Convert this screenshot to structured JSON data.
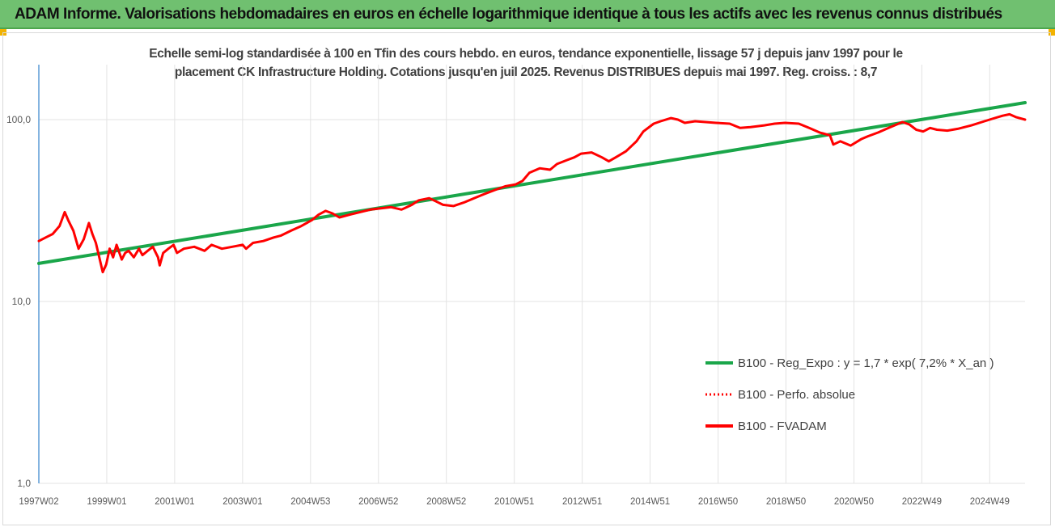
{
  "header": {
    "title": "ADAM Informe. Valorisations hebdomadaires en euros en échelle logarithmique identique à tous les actifs avec les revenus connus distribués"
  },
  "colors": {
    "header_bg": "#70c070",
    "regression": "#1aa64a",
    "series": "#ff0000",
    "corner_accent": "#f2b200"
  },
  "chart_data": {
    "type": "line",
    "subtitle_line1": "Echelle semi-log standardisée à 100 en Tfin des cours hebdo. en euros, tendance exponentielle, lissage 57 j depuis janv 1997 pour le",
    "subtitle_line2": "placement CK Infrastructure Holding. Cotations jusqu'en juil 2025. Revenus DISTRIBUES depuis mai 1997. Reg. croiss. : 8,7",
    "y_scale": "log",
    "ylim": [
      1,
      200
    ],
    "y_ticks": [
      {
        "value": 1,
        "label": "1,0"
      },
      {
        "value": 10,
        "label": "10,0"
      },
      {
        "value": 100,
        "label": "100,0"
      }
    ],
    "x_ticks": [
      "1997W02",
      "1999W01",
      "2001W01",
      "2003W01",
      "2004W53",
      "2006W52",
      "2008W52",
      "2010W51",
      "2012W51",
      "2014W51",
      "2016W50",
      "2018W50",
      "2020W50",
      "2022W49",
      "2024W49"
    ],
    "x_range": [
      1997.0,
      2025.55
    ],
    "grid": "vertical",
    "legend_position": "bottom-right",
    "legend": [
      {
        "label": "B100 - Reg_Expo : y = 1,7 * exp( 7,2% *  X_an )",
        "style": "solid",
        "color": "#1aa64a"
      },
      {
        "label": "B100 - Perfo. absolue",
        "style": "dotted",
        "color": "#ff0000"
      },
      {
        "label": "B100 - FVADAM",
        "style": "solid",
        "color": "#ff0000"
      }
    ],
    "series": [
      {
        "legend_index": 0,
        "color": "#1aa64a",
        "x": [
          1997.0,
          2025.55
        ],
        "y": [
          16.2,
          124
        ]
      },
      {
        "legend_index": 2,
        "color": "#ff0000",
        "x": [
          1997.0,
          1997.2,
          1997.4,
          1997.6,
          1997.75,
          1997.85,
          1998.0,
          1998.15,
          1998.3,
          1998.45,
          1998.55,
          1998.65,
          1998.75,
          1998.85,
          1998.95,
          1999.05,
          1999.15,
          1999.25,
          1999.4,
          1999.5,
          1999.6,
          1999.75,
          1999.9,
          2000.0,
          2000.15,
          2000.3,
          2000.45,
          2000.5,
          2000.6,
          2000.75,
          2000.9,
          2001.0,
          2001.2,
          2001.5,
          2001.8,
          2002.0,
          2002.3,
          2002.6,
          2002.9,
          2003.0,
          2003.2,
          2003.5,
          2003.8,
          2004.0,
          2004.3,
          2004.6,
          2004.9,
          2005.1,
          2005.3,
          2005.5,
          2005.7,
          2006.0,
          2006.3,
          2006.6,
          2006.9,
          2007.2,
          2007.5,
          2007.8,
          2008.0,
          2008.3,
          2008.5,
          2008.7,
          2009.0,
          2009.3,
          2009.6,
          2009.9,
          2010.2,
          2010.5,
          2010.8,
          2011.0,
          2011.2,
          2011.5,
          2011.8,
          2012.0,
          2012.3,
          2012.5,
          2012.7,
          2013.0,
          2013.3,
          2013.5,
          2013.7,
          2014.0,
          2014.3,
          2014.5,
          2014.8,
          2015.0,
          2015.3,
          2015.5,
          2015.7,
          2016.0,
          2016.3,
          2016.6,
          2017.0,
          2017.3,
          2017.6,
          2018.0,
          2018.3,
          2018.6,
          2019.0,
          2019.3,
          2019.6,
          2019.9,
          2020.0,
          2020.2,
          2020.5,
          2020.8,
          2021.0,
          2021.3,
          2021.6,
          2022.0,
          2022.2,
          2022.4,
          2022.6,
          2022.8,
          2023.0,
          2023.3,
          2023.6,
          2024.0,
          2024.3,
          2024.6,
          2024.9,
          2025.1,
          2025.3,
          2025.55
        ],
        "y": [
          21.5,
          22.5,
          23.5,
          26,
          31,
          28,
          24.5,
          19.5,
          22,
          27,
          23.5,
          21,
          17.5,
          14.5,
          16,
          19.5,
          17.5,
          20.5,
          17,
          18.5,
          19,
          17.5,
          19.5,
          18,
          19,
          20,
          17.5,
          15.8,
          18.5,
          19.5,
          20.5,
          18.5,
          19.5,
          20,
          19,
          20.5,
          19.5,
          20,
          20.5,
          19.5,
          21,
          21.5,
          22.5,
          23,
          24.5,
          26,
          28,
          30,
          31.5,
          30.5,
          29,
          30,
          31,
          32,
          32.5,
          33,
          32,
          34,
          36,
          37,
          35.5,
          34,
          33.5,
          35,
          37,
          39,
          41,
          43,
          44,
          46,
          51,
          54,
          53,
          57,
          60,
          62,
          65,
          66,
          62,
          59,
          62,
          67,
          76,
          86,
          95,
          98,
          102,
          100,
          96,
          98,
          97,
          96,
          95,
          90,
          91,
          93,
          95,
          96,
          95,
          90,
          85,
          82,
          73,
          76,
          72,
          78,
          81,
          85,
          90,
          97,
          94,
          88,
          86,
          90,
          88,
          87,
          89,
          93,
          97,
          101,
          105,
          107,
          103,
          100
        ]
      }
    ]
  }
}
